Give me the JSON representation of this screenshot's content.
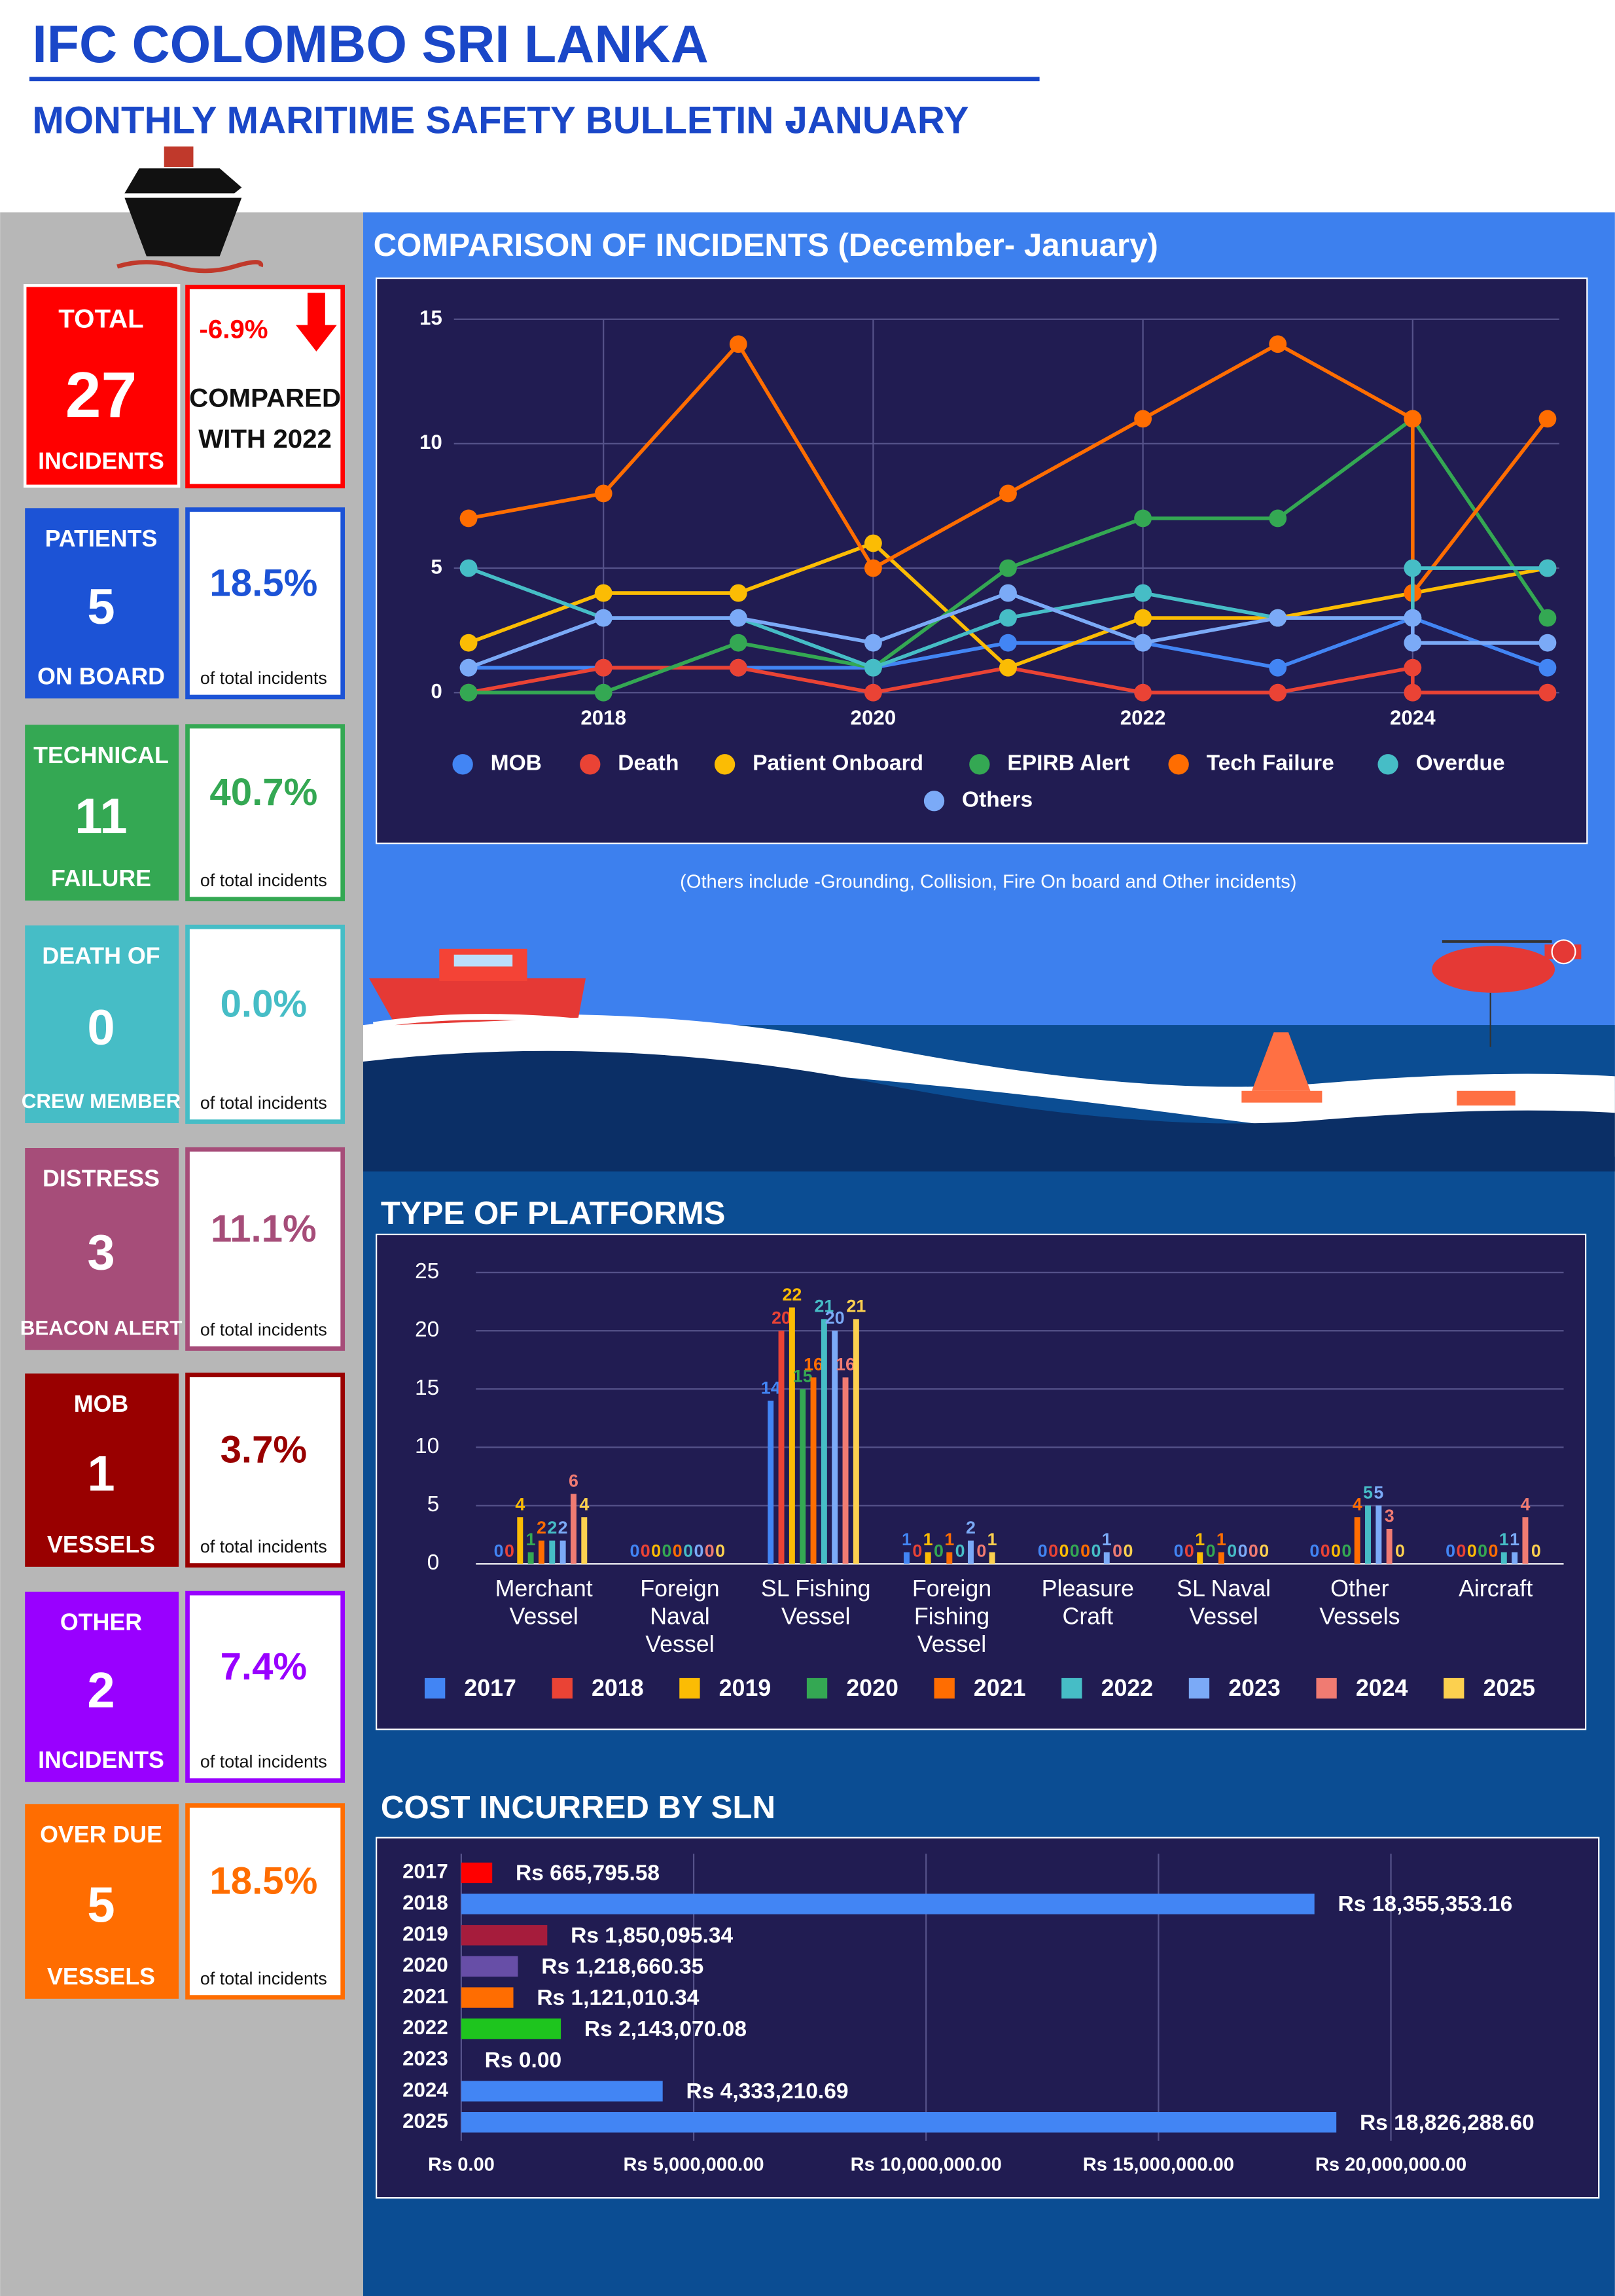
{
  "header": {
    "title": "IFC COLOMBO SRI LANKA",
    "subtitle": "MONTHLY MARITIME SAFETY BULLETIN -",
    "month": "JANUARY"
  },
  "summary": {
    "top": "TOTAL",
    "value": 27,
    "bottom": "INCIDENTS",
    "change": "-6.9%",
    "compare": [
      "COMPARED",
      "WITH 2022"
    ]
  },
  "cards": [
    {
      "top": "PATIENTS",
      "value": 5,
      "bottom": "ON BOARD",
      "percent": "18.5%",
      "note": "of total incidents",
      "color": "#1c53d6"
    },
    {
      "top": "TECHNICAL",
      "value": 11,
      "bottom": "FAILURE",
      "percent": "40.7%",
      "note": "of total incidents",
      "color": "#34a853"
    },
    {
      "top": "DEATH OF",
      "value": 0,
      "bottom": "CREW MEMBER",
      "percent": "0.0%",
      "note": "of total incidents",
      "color": "#46bdc6"
    },
    {
      "top": "DISTRESS",
      "value": 3,
      "bottom": "BEACON ALERT",
      "percent": "11.1%",
      "note": "of total incidents",
      "color": "#a64d79"
    },
    {
      "top": "MOB",
      "value": 1,
      "bottom": "VESSELS",
      "percent": "3.7%",
      "note": "of total incidents",
      "color": "#990000"
    },
    {
      "top": "OTHER",
      "value": 2,
      "bottom": "INCIDENTS",
      "percent": "7.4%",
      "note": "of total incidents",
      "color": "#9900ff"
    },
    {
      "top": "OVER DUE",
      "value": 5,
      "bottom": "VESSELS",
      "percent": "18.5%",
      "note": "of total incidents",
      "color": "#ff6d01"
    }
  ],
  "chart_data": [
    {
      "type": "line",
      "title": "COMPARISON OF INCIDENTS (December- January)",
      "note": "(Others include -Grounding, Collision, Fire On board and Other incidents)",
      "x": [
        2017,
        2018,
        2019,
        2020,
        2021,
        2022,
        2023,
        2024,
        2024,
        2025
      ],
      "xlim": [
        2017,
        2025
      ],
      "xticks": [
        2018,
        2020,
        2022,
        2024
      ],
      "ylim": [
        0,
        15
      ],
      "yticks": [
        0,
        5,
        10,
        15
      ],
      "grid": true,
      "series": [
        {
          "name": "MOB",
          "color": "#4285f4",
          "values": [
            1,
            1,
            1,
            1,
            2,
            2,
            1,
            3,
            3,
            1
          ]
        },
        {
          "name": "Death",
          "color": "#ea4335",
          "values": [
            0,
            1,
            1,
            0,
            1,
            0,
            0,
            1,
            0,
            0
          ]
        },
        {
          "name": "Patient Onboard",
          "color": "#fbbc04",
          "values": [
            2,
            4,
            4,
            6,
            1,
            3,
            3,
            4,
            4,
            5
          ]
        },
        {
          "name": "EPIRB Alert",
          "color": "#34a853",
          "values": [
            0,
            0,
            2,
            1,
            5,
            7,
            7,
            11,
            11,
            3
          ]
        },
        {
          "name": "Tech Failure",
          "color": "#ff6d01",
          "values": [
            7,
            8,
            14,
            5,
            8,
            11,
            14,
            11,
            4,
            11
          ]
        },
        {
          "name": "Overdue",
          "color": "#46bdc6",
          "values": [
            5,
            3,
            3,
            1,
            3,
            4,
            3,
            3,
            5,
            5
          ]
        },
        {
          "name": "Others",
          "color": "#7baaf7",
          "values": [
            1,
            3,
            3,
            2,
            4,
            2,
            3,
            3,
            2,
            2
          ]
        }
      ]
    },
    {
      "type": "bar",
      "title": "TYPE OF PLATFORMS",
      "categories": [
        [
          "Merchant",
          "Vessel"
        ],
        [
          "Foreign",
          "Naval",
          "Vessel"
        ],
        [
          "SL Fishing",
          "Vessel"
        ],
        [
          "Foreign",
          "Fishing",
          "Vessel"
        ],
        [
          "Pleasure",
          "Craft"
        ],
        [
          "SL Naval",
          "Vessel"
        ],
        [
          "Other",
          "Vessels"
        ],
        [
          "Aircraft"
        ]
      ],
      "ylim": [
        0,
        25
      ],
      "yticks": [
        0,
        5,
        10,
        15,
        20,
        25
      ],
      "grid": true,
      "series": [
        {
          "name": "2017",
          "color": "#4285f4",
          "values": [
            0,
            0,
            14,
            1,
            0,
            0,
            0,
            0
          ]
        },
        {
          "name": "2018",
          "color": "#ea4335",
          "values": [
            0,
            0,
            20,
            0,
            0,
            0,
            0,
            0
          ]
        },
        {
          "name": "2019",
          "color": "#fbbc04",
          "values": [
            4,
            0,
            22,
            1,
            0,
            1,
            0,
            0
          ]
        },
        {
          "name": "2020",
          "color": "#34a853",
          "values": [
            1,
            0,
            15,
            0,
            0,
            0,
            0,
            0
          ]
        },
        {
          "name": "2021",
          "color": "#ff6d01",
          "values": [
            2,
            0,
            16,
            1,
            0,
            1,
            4,
            0
          ]
        },
        {
          "name": "2022",
          "color": "#46bdc6",
          "values": [
            2,
            0,
            21,
            0,
            0,
            0,
            5,
            1
          ]
        },
        {
          "name": "2023",
          "color": "#7baaf7",
          "values": [
            2,
            0,
            20,
            2,
            1,
            0,
            5,
            1
          ]
        },
        {
          "name": "2024",
          "color": "#f07b72",
          "values": [
            6,
            0,
            16,
            0,
            0,
            0,
            3,
            4
          ]
        },
        {
          "name": "2025",
          "color": "#fcd04f",
          "values": [
            4,
            0,
            21,
            1,
            0,
            0,
            0,
            0
          ]
        }
      ]
    },
    {
      "type": "hbar",
      "title": "COST INCURRED BY SLN",
      "categories": [
        "2017",
        "2018",
        "2019",
        "2020",
        "2021",
        "2022",
        "2023",
        "2024",
        "2025"
      ],
      "values": [
        665795.58,
        18355353.16,
        1850095.34,
        1218660.35,
        1121010.34,
        2143070.08,
        0,
        4333210.69,
        18826288.6
      ],
      "value_labels": [
        "Rs 665,795.58",
        "Rs 18,355,353.16",
        "Rs 1,850,095.34",
        "Rs 1,218,660.35",
        "Rs 1,121,010.34",
        "Rs 2,143,070.08",
        "Rs 0.00",
        "Rs 4,333,210.69",
        "Rs 18,826,288.60"
      ],
      "colors": [
        "#ff0000",
        "#4285f4",
        "#a61c3c",
        "#674ea7",
        "#ff6d01",
        "#1ec51e",
        "#4285f4",
        "#4285f4",
        "#4285f4"
      ],
      "xlim": [
        0,
        20000000
      ],
      "xticks": [
        {
          "value": 0,
          "label": "Rs 0.00"
        },
        {
          "value": 5000000,
          "label": "Rs 5,000,000.00"
        },
        {
          "value": 10000000,
          "label": "Rs 10,000,000.00"
        },
        {
          "value": 15000000,
          "label": "Rs 15,000,000.00"
        },
        {
          "value": 20000000,
          "label": "Rs 20,000,000.00"
        }
      ],
      "grid": true
    }
  ]
}
